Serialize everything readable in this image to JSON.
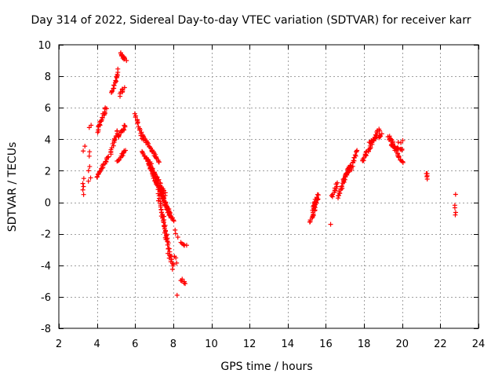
{
  "chart_data": {
    "type": "scatter",
    "title": "Day 314 of 2022, Sidereal Day-to-day VTEC variation (SDTVAR) for receiver karr",
    "xlabel": "GPS time / hours",
    "ylabel": "SDTVAR / TECUs",
    "xlim": [
      2,
      24
    ],
    "ylim": [
      -8,
      10
    ],
    "xticks": [
      2,
      4,
      6,
      8,
      10,
      12,
      14,
      16,
      18,
      20,
      22,
      24
    ],
    "yticks": [
      -8,
      -6,
      -4,
      -2,
      0,
      2,
      4,
      6,
      8,
      10
    ],
    "grid": true,
    "marker": "+",
    "marker_color": "#ff0000",
    "series": [
      {
        "name": "SDTVAR",
        "traces": [
          {
            "from": [
              3.3,
              0.5
            ],
            "to": [
              3.3,
              1.5
            ],
            "n": 5
          },
          {
            "from": [
              3.3,
              3.3
            ],
            "to": [
              3.35,
              3.5
            ],
            "n": 2
          },
          {
            "from": [
              3.55,
              1.3
            ],
            "to": [
              3.65,
              1.5
            ],
            "n": 2
          },
          {
            "from": [
              3.55,
              2.0
            ],
            "to": [
              3.65,
              2.2
            ],
            "n": 2
          },
          {
            "from": [
              3.55,
              3.0
            ],
            "to": [
              3.65,
              3.2
            ],
            "n": 2
          },
          {
            "from": [
              3.55,
              4.7
            ],
            "to": [
              3.7,
              4.9
            ],
            "n": 2
          },
          {
            "from": [
              4.0,
              1.6
            ],
            "to": [
              4.6,
              2.9
            ],
            "n": 22
          },
          {
            "from": [
              4.0,
              4.5
            ],
            "to": [
              4.5,
              6.0
            ],
            "n": 22
          },
          {
            "from": [
              4.7,
              3.0
            ],
            "to": [
              5.1,
              4.6
            ],
            "n": 16
          },
          {
            "from": [
              4.8,
              6.9
            ],
            "to": [
              5.1,
              8.4
            ],
            "n": 16
          },
          {
            "from": [
              5.2,
              9.5
            ],
            "to": [
              5.5,
              9.0
            ],
            "n": 12
          },
          {
            "from": [
              5.1,
              2.6
            ],
            "to": [
              5.5,
              3.3
            ],
            "n": 14
          },
          {
            "from": [
              5.1,
              4.1
            ],
            "to": [
              5.5,
              4.9
            ],
            "n": 14
          },
          {
            "from": [
              5.2,
              6.8
            ],
            "to": [
              5.4,
              7.3
            ],
            "n": 8
          },
          {
            "from": [
              6.0,
              5.6
            ],
            "to": [
              6.4,
              4.0
            ],
            "n": 16
          },
          {
            "from": [
              6.4,
              4.2
            ],
            "to": [
              7.3,
              2.5
            ],
            "n": 30
          },
          {
            "from": [
              6.4,
              3.2
            ],
            "to": [
              7.6,
              0.5
            ],
            "n": 40
          },
          {
            "from": [
              6.6,
              2.8
            ],
            "to": [
              7.9,
              -1.0
            ],
            "n": 45
          },
          {
            "from": [
              6.8,
              2.5
            ],
            "to": [
              7.8,
              -0.8
            ],
            "n": 36
          },
          {
            "from": [
              7.0,
              1.5
            ],
            "to": [
              8.0,
              -1.2
            ],
            "n": 36
          },
          {
            "from": [
              7.2,
              0.5
            ],
            "to": [
              8.0,
              -4.2
            ],
            "n": 40
          },
          {
            "from": [
              7.4,
              -0.5
            ],
            "to": [
              7.8,
              -3.5
            ],
            "n": 20
          },
          {
            "from": [
              8.1,
              -1.8
            ],
            "to": [
              8.2,
              -2.2
            ],
            "n": 3
          },
          {
            "from": [
              8.1,
              -3.4
            ],
            "to": [
              8.2,
              -3.8
            ],
            "n": 3
          },
          {
            "from": [
              8.4,
              -2.5
            ],
            "to": [
              8.65,
              -2.8
            ],
            "n": 6
          },
          {
            "from": [
              8.4,
              -4.9
            ],
            "to": [
              8.65,
              -5.1
            ],
            "n": 6
          },
          {
            "from": [
              8.2,
              -5.9
            ],
            "to": [
              8.2,
              -5.9
            ],
            "n": 1
          },
          {
            "from": [
              15.2,
              -1.3
            ],
            "to": [
              15.6,
              0.5
            ],
            "n": 25
          },
          {
            "from": [
              15.3,
              -0.5
            ],
            "to": [
              15.5,
              0.2
            ],
            "n": 10
          },
          {
            "from": [
              16.3,
              0.3
            ],
            "to": [
              16.6,
              1.2
            ],
            "n": 12
          },
          {
            "from": [
              16.25,
              -1.4
            ],
            "to": [
              16.25,
              -1.4
            ],
            "n": 1
          },
          {
            "from": [
              16.6,
              0.3
            ],
            "to": [
              17.3,
              2.4
            ],
            "n": 28
          },
          {
            "from": [
              16.9,
              1.5
            ],
            "to": [
              17.3,
              2.2
            ],
            "n": 12
          },
          {
            "from": [
              17.3,
              2.0
            ],
            "to": [
              17.6,
              3.3
            ],
            "n": 16
          },
          {
            "from": [
              17.9,
              2.6
            ],
            "to": [
              18.8,
              4.6
            ],
            "n": 35
          },
          {
            "from": [
              18.3,
              3.8
            ],
            "to": [
              18.9,
              4.3
            ],
            "n": 16
          },
          {
            "from": [
              19.3,
              4.2
            ],
            "to": [
              20.0,
              2.5
            ],
            "n": 30
          },
          {
            "from": [
              19.4,
              3.6
            ],
            "to": [
              20.0,
              3.3
            ],
            "n": 16
          },
          {
            "from": [
              19.8,
              3.8
            ],
            "to": [
              20.0,
              3.9
            ],
            "n": 3
          },
          {
            "from": [
              21.3,
              1.9
            ],
            "to": [
              21.35,
              1.5
            ],
            "n": 5
          },
          {
            "from": [
              22.8,
              0.5
            ],
            "to": [
              22.8,
              0.5
            ],
            "n": 1
          },
          {
            "from": [
              22.8,
              -0.8
            ],
            "to": [
              22.8,
              -0.2
            ],
            "n": 4
          }
        ]
      }
    ]
  }
}
